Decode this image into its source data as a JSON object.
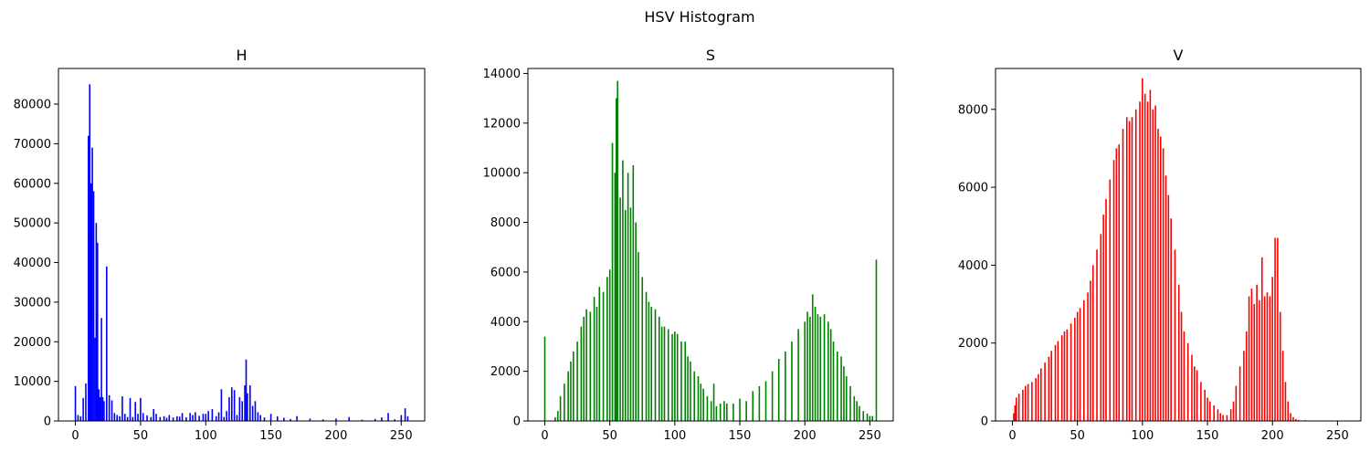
{
  "figure": {
    "title": "HSV Histogram"
  },
  "chart_data": [
    {
      "type": "bar",
      "title": "H",
      "xlabel": "",
      "ylabel": "",
      "color": "#0000ff",
      "xlim": [
        -13,
        268
      ],
      "ylim": [
        0,
        89000
      ],
      "xticks": [
        0,
        50,
        100,
        150,
        200,
        250
      ],
      "yticks": [
        0,
        10000,
        20000,
        30000,
        40000,
        50000,
        60000,
        70000,
        80000
      ],
      "x": [
        0,
        2,
        4,
        6,
        8,
        10,
        11,
        12,
        13,
        14,
        15,
        16,
        17,
        18,
        19,
        20,
        21,
        22,
        24,
        26,
        28,
        30,
        32,
        34,
        36,
        38,
        40,
        42,
        44,
        46,
        48,
        50,
        52,
        55,
        58,
        60,
        62,
        65,
        68,
        70,
        72,
        75,
        78,
        80,
        82,
        85,
        88,
        90,
        92,
        95,
        98,
        100,
        102,
        105,
        108,
        110,
        112,
        114,
        116,
        118,
        120,
        122,
        124,
        126,
        128,
        130,
        131,
        132,
        134,
        136,
        138,
        140,
        142,
        145,
        150,
        155,
        160,
        165,
        170,
        180,
        190,
        200,
        210,
        220,
        230,
        235,
        240,
        245,
        250,
        253,
        255
      ],
      "values": [
        8800,
        1500,
        1200,
        5800,
        9500,
        72000,
        85000,
        60000,
        69000,
        58000,
        21000,
        50000,
        45000,
        8000,
        6000,
        26000,
        6000,
        5000,
        39000,
        6500,
        5200,
        2000,
        1500,
        1200,
        6200,
        1800,
        1000,
        5800,
        1000,
        4800,
        1800,
        5800,
        2000,
        1400,
        1000,
        3000,
        1800,
        1000,
        1200,
        800,
        1500,
        900,
        1200,
        1100,
        2000,
        900,
        2000,
        1500,
        2200,
        1300,
        1800,
        1800,
        2500,
        3000,
        1200,
        2200,
        8000,
        1000,
        2500,
        6000,
        8500,
        7800,
        1500,
        6000,
        5000,
        9000,
        15500,
        7000,
        9000,
        3800,
        5000,
        2200,
        1500,
        900,
        1800,
        1200,
        800,
        500,
        1200,
        600,
        400,
        600,
        1000,
        300,
        500,
        900,
        2000,
        400,
        1500,
        3200,
        1200
      ]
    },
    {
      "type": "bar",
      "title": "S",
      "xlabel": "",
      "ylabel": "",
      "color": "#008000",
      "xlim": [
        -13,
        268
      ],
      "ylim": [
        0,
        14200
      ],
      "xticks": [
        0,
        50,
        100,
        150,
        200,
        250
      ],
      "yticks": [
        0,
        2000,
        4000,
        6000,
        8000,
        10000,
        12000,
        14000
      ],
      "x": [
        0,
        5,
        8,
        10,
        12,
        15,
        18,
        20,
        22,
        25,
        28,
        30,
        32,
        35,
        38,
        40,
        42,
        45,
        48,
        50,
        52,
        54,
        55,
        56,
        58,
        60,
        62,
        64,
        66,
        68,
        70,
        72,
        75,
        78,
        80,
        82,
        85,
        88,
        90,
        92,
        95,
        98,
        100,
        102,
        105,
        108,
        110,
        112,
        115,
        118,
        120,
        122,
        125,
        128,
        130,
        132,
        135,
        138,
        140,
        145,
        150,
        155,
        160,
        165,
        170,
        175,
        180,
        185,
        190,
        195,
        200,
        202,
        204,
        206,
        208,
        210,
        212,
        215,
        218,
        220,
        222,
        225,
        228,
        230,
        232,
        235,
        238,
        240,
        242,
        245,
        248,
        250,
        252,
        255
      ],
      "values": [
        3400,
        0,
        150,
        400,
        1000,
        1500,
        2000,
        2400,
        2800,
        3200,
        3800,
        4200,
        4500,
        4400,
        5000,
        4600,
        5400,
        5200,
        5800,
        6100,
        11200,
        10000,
        13000,
        13700,
        9000,
        10500,
        8500,
        10000,
        8600,
        10300,
        8000,
        6800,
        5800,
        5200,
        4800,
        4600,
        4500,
        4200,
        3800,
        3800,
        3700,
        3500,
        3600,
        3500,
        3200,
        3200,
        2600,
        2400,
        2000,
        1800,
        1500,
        1300,
        1000,
        800,
        1500,
        600,
        700,
        800,
        700,
        700,
        900,
        800,
        1200,
        1400,
        1600,
        2000,
        2500,
        2800,
        3200,
        3700,
        4000,
        4400,
        4200,
        5100,
        4600,
        4300,
        4200,
        4300,
        4000,
        3700,
        3200,
        2800,
        2600,
        2200,
        1800,
        1400,
        1000,
        800,
        600,
        400,
        300,
        200,
        200,
        6500
      ]
    },
    {
      "type": "bar",
      "title": "V",
      "xlabel": "",
      "ylabel": "",
      "color": "#ff0000",
      "xlim": [
        -13,
        268
      ],
      "ylim": [
        0,
        9050
      ],
      "xticks": [
        0,
        50,
        100,
        150,
        200,
        250
      ],
      "yticks": [
        0,
        2000,
        4000,
        6000,
        8000
      ],
      "x": [
        0,
        1,
        2,
        3,
        5,
        8,
        10,
        12,
        15,
        18,
        20,
        22,
        25,
        28,
        30,
        33,
        35,
        38,
        40,
        42,
        45,
        48,
        50,
        52,
        55,
        58,
        60,
        62,
        65,
        68,
        70,
        72,
        75,
        78,
        80,
        82,
        85,
        88,
        90,
        92,
        95,
        98,
        100,
        102,
        104,
        106,
        108,
        110,
        112,
        114,
        116,
        118,
        120,
        122,
        125,
        128,
        130,
        132,
        135,
        138,
        140,
        142,
        145,
        148,
        150,
        152,
        155,
        158,
        160,
        162,
        165,
        168,
        170,
        172,
        175,
        178,
        180,
        182,
        184,
        186,
        188,
        190,
        192,
        194,
        196,
        198,
        200,
        202,
        204,
        206,
        208,
        210,
        212,
        214,
        216,
        218,
        220,
        225,
        230,
        240,
        250,
        255
      ],
      "values": [
        0,
        200,
        400,
        600,
        700,
        800,
        900,
        950,
        1000,
        1100,
        1200,
        1350,
        1500,
        1650,
        1800,
        1950,
        2050,
        2200,
        2300,
        2350,
        2500,
        2650,
        2800,
        2900,
        3100,
        3300,
        3600,
        4000,
        4400,
        4800,
        5300,
        5700,
        6200,
        6700,
        7000,
        7100,
        7500,
        7800,
        7700,
        7800,
        8000,
        8200,
        8800,
        8400,
        8200,
        8500,
        8000,
        8100,
        7500,
        7300,
        7000,
        6300,
        5800,
        5200,
        4400,
        3500,
        2800,
        2300,
        2000,
        1700,
        1400,
        1300,
        1000,
        800,
        600,
        500,
        400,
        300,
        200,
        150,
        150,
        300,
        500,
        900,
        1400,
        1800,
        2300,
        3200,
        3400,
        3000,
        3500,
        3100,
        4200,
        3200,
        3300,
        3200,
        3700,
        4700,
        4700,
        2800,
        1800,
        1000,
        500,
        200,
        100,
        50,
        30,
        20,
        10,
        5,
        0,
        0
      ]
    }
  ]
}
